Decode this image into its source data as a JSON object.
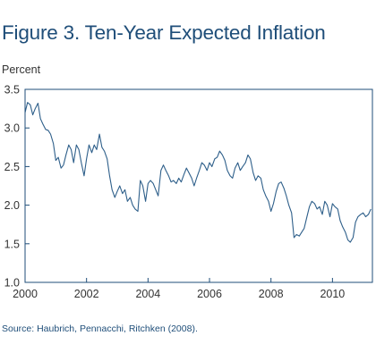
{
  "page": {
    "title": "Figure 3. Ten-Year Expected Inflation",
    "source": "Source: Haubrich, Pennacchi, Ritchken (2008)."
  },
  "colors": {
    "title": "#1f4e79",
    "line": "#2e5f8a",
    "axis": "#1f4e79"
  },
  "chart_data": {
    "type": "line",
    "title": "Figure 3. Ten-Year Expected Inflation",
    "ylabel": "Percent",
    "xlabel": "",
    "xlim": [
      2000,
      2011.3
    ],
    "ylim": [
      1.0,
      3.5
    ],
    "x_ticks": [
      2000,
      2002,
      2004,
      2006,
      2008,
      2010
    ],
    "y_ticks": [
      1.0,
      1.5,
      2.0,
      2.5,
      3.0,
      3.5
    ],
    "y_tick_labels": [
      "1.0",
      "1.5",
      "2.0",
      "2.5",
      "3.0",
      "3.5"
    ],
    "grid": false,
    "legend": "none",
    "series": [
      {
        "x": [
          2000.0,
          2000.08,
          2000.17,
          2000.25,
          2000.33,
          2000.42,
          2000.5,
          2000.58,
          2000.67,
          2000.75,
          2000.83,
          2000.92,
          2001.0,
          2001.08,
          2001.17,
          2001.25,
          2001.33,
          2001.42,
          2001.5,
          2001.58,
          2001.67,
          2001.75,
          2001.83,
          2001.92,
          2002.0,
          2002.08,
          2002.17,
          2002.25,
          2002.33,
          2002.42,
          2002.5,
          2002.58,
          2002.67,
          2002.75,
          2002.83,
          2002.92,
          2003.0,
          2003.08,
          2003.17,
          2003.25,
          2003.33,
          2003.42,
          2003.5,
          2003.58,
          2003.67,
          2003.75,
          2003.83,
          2003.92,
          2004.0,
          2004.08,
          2004.17,
          2004.25,
          2004.33,
          2004.42,
          2004.5,
          2004.58,
          2004.67,
          2004.75,
          2004.83,
          2004.92,
          2005.0,
          2005.08,
          2005.17,
          2005.25,
          2005.33,
          2005.42,
          2005.5,
          2005.58,
          2005.67,
          2005.75,
          2005.83,
          2005.92,
          2006.0,
          2006.08,
          2006.17,
          2006.25,
          2006.33,
          2006.42,
          2006.5,
          2006.58,
          2006.67,
          2006.75,
          2006.83,
          2006.92,
          2007.0,
          2007.08,
          2007.17,
          2007.25,
          2007.33,
          2007.42,
          2007.5,
          2007.58,
          2007.67,
          2007.75,
          2007.83,
          2007.92,
          2008.0,
          2008.08,
          2008.17,
          2008.25,
          2008.33,
          2008.42,
          2008.5,
          2008.58,
          2008.67,
          2008.75,
          2008.83,
          2008.92,
          2009.0,
          2009.08,
          2009.17,
          2009.25,
          2009.33,
          2009.42,
          2009.5,
          2009.58,
          2009.67,
          2009.75,
          2009.83,
          2009.92,
          2010.0,
          2010.08,
          2010.17,
          2010.25,
          2010.33,
          2010.42,
          2010.5,
          2010.58,
          2010.67,
          2010.75,
          2010.83,
          2010.92,
          2011.0,
          2011.08,
          2011.17,
          2011.25
        ],
        "values": [
          3.2,
          3.33,
          3.3,
          3.17,
          3.25,
          3.32,
          3.12,
          3.05,
          2.98,
          2.97,
          2.92,
          2.8,
          2.58,
          2.62,
          2.48,
          2.52,
          2.65,
          2.78,
          2.72,
          2.55,
          2.78,
          2.72,
          2.55,
          2.38,
          2.6,
          2.78,
          2.68,
          2.78,
          2.72,
          2.92,
          2.75,
          2.7,
          2.6,
          2.38,
          2.2,
          2.1,
          2.18,
          2.25,
          2.15,
          2.2,
          2.05,
          2.1,
          2.0,
          1.95,
          1.92,
          2.32,
          2.25,
          2.05,
          2.28,
          2.32,
          2.28,
          2.2,
          2.12,
          2.45,
          2.52,
          2.45,
          2.38,
          2.3,
          2.32,
          2.28,
          2.35,
          2.3,
          2.4,
          2.48,
          2.42,
          2.35,
          2.25,
          2.35,
          2.45,
          2.55,
          2.52,
          2.45,
          2.55,
          2.5,
          2.6,
          2.62,
          2.7,
          2.65,
          2.58,
          2.45,
          2.38,
          2.35,
          2.48,
          2.55,
          2.45,
          2.5,
          2.55,
          2.65,
          2.6,
          2.42,
          2.32,
          2.38,
          2.35,
          2.2,
          2.12,
          2.05,
          1.92,
          2.02,
          2.18,
          2.28,
          2.3,
          2.22,
          2.12,
          2.0,
          1.9,
          1.58,
          1.62,
          1.6,
          1.65,
          1.7,
          1.85,
          1.98,
          2.05,
          2.02,
          1.95,
          1.98,
          1.88,
          2.05,
          2.0,
          1.85,
          2.02,
          1.98,
          1.95,
          1.8,
          1.72,
          1.65,
          1.55,
          1.52,
          1.58,
          1.78,
          1.85,
          1.88,
          1.9,
          1.85,
          1.88,
          1.95
        ]
      }
    ]
  },
  "source_note": "Source: Haubrich, Pennacchi, Ritchken (2008)."
}
